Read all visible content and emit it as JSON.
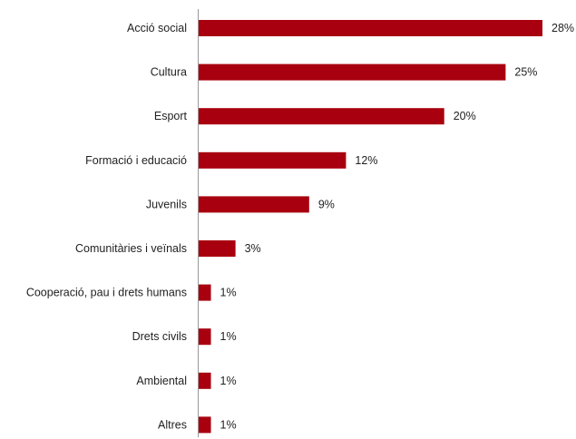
{
  "chart_data": {
    "type": "bar",
    "orientation": "horizontal",
    "categories": [
      "Acció social",
      "Cultura",
      "Esport",
      "Formació i educació",
      "Juvenils",
      "Comunitàries i veïnals",
      "Cooperació, pau i drets humans",
      "Drets civils",
      "Ambiental",
      "Altres"
    ],
    "values": [
      28,
      25,
      20,
      12,
      9,
      3,
      1,
      1,
      1,
      1
    ],
    "value_labels": [
      "28%",
      "25%",
      "20%",
      "12%",
      "9%",
      "3%",
      "1%",
      "1%",
      "1%",
      "1%"
    ],
    "unit": "%",
    "xlim": [
      0,
      28
    ],
    "grid": false,
    "legend": "none",
    "bar_color": "#a8000f"
  }
}
